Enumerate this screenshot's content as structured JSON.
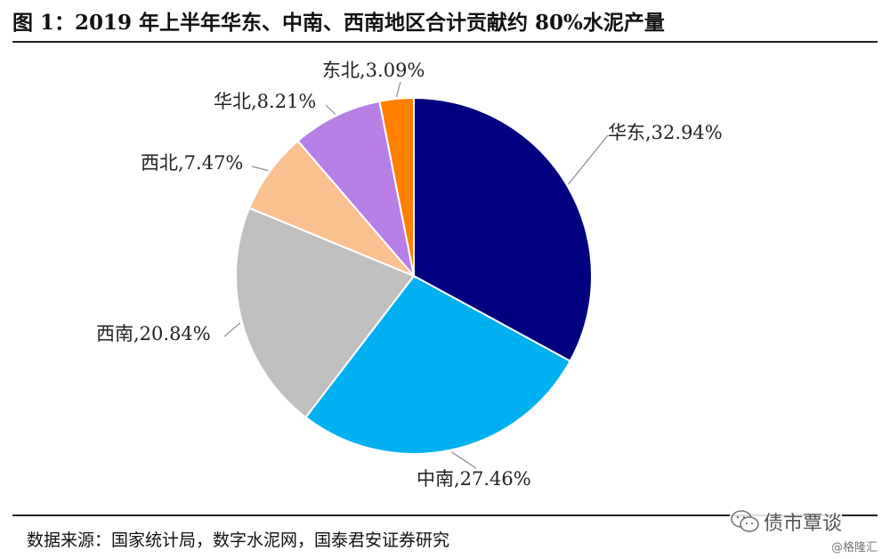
{
  "figure": {
    "title": "图 1：2019 年上半年华东、中南、西南地区合计贡献约 80%水泥产量",
    "source": "数据来源：国家统计局，数字水泥网，国泰君安证券研究",
    "watermark": "债市覃谈",
    "corner_mark": "@格隆汇"
  },
  "chart_data": {
    "type": "pie",
    "title": "图 1：2019 年上半年华东、中南、西南地区合计贡献约 80%水泥产量",
    "slices": [
      {
        "label": "华东",
        "value": 32.94,
        "display": "华东,32.94%",
        "color": "#000080"
      },
      {
        "label": "中南",
        "value": 27.46,
        "display": "中南,27.46%",
        "color": "#00B0F0"
      },
      {
        "label": "西南",
        "value": 20.84,
        "display": "西南,20.84%",
        "color": "#BFBFBF"
      },
      {
        "label": "西北",
        "value": 7.47,
        "display": "西北,7.47%",
        "color": "#FAC090"
      },
      {
        "label": "华北",
        "value": 8.21,
        "display": "华北,8.21%",
        "color": "#B77FE6"
      },
      {
        "label": "东北",
        "value": 3.09,
        "display": "东北,3.09%",
        "color": "#FF7F00"
      }
    ],
    "legend": "none"
  }
}
